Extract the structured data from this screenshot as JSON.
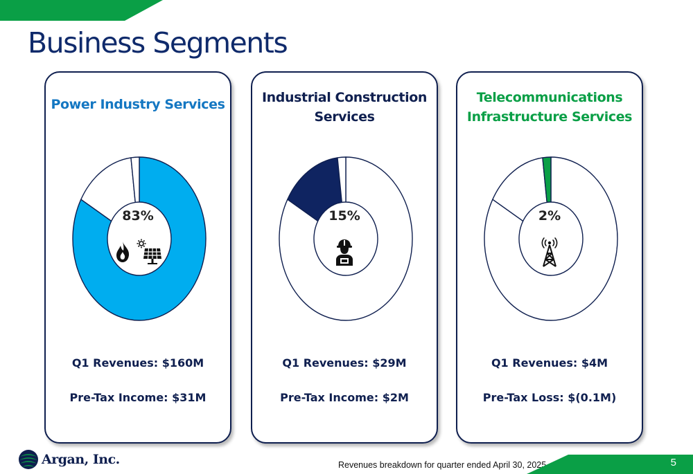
{
  "page": {
    "title": "Business Segments",
    "footnote": "Revenues breakdown for quarter ended April 30, 2025",
    "page_number": "5",
    "logo_text": "Argan, Inc.",
    "colors": {
      "title": "#0f2a6b",
      "accent_green": "#0a9f46",
      "navy": "#0f1f4f"
    }
  },
  "segments": [
    {
      "title_lines": [
        "Power Industry Services"
      ],
      "title_color": "#1477c2",
      "share_label": "83%",
      "revenue_label": "Q1 Revenues: $160M",
      "income_label": "Pre-Tax Income: $31M",
      "icons": [
        "flame-icon",
        "solar-panel-icon"
      ]
    },
    {
      "title_lines": [
        "Industrial Construction",
        "Services"
      ],
      "title_color": "#0f1f4f",
      "share_label": "15%",
      "revenue_label": "Q1 Revenues: $29M",
      "income_label": "Pre-Tax Income: $2M",
      "icons": [
        "construction-worker-icon"
      ]
    },
    {
      "title_lines": [
        "Telecommunications",
        "Infrastructure Services"
      ],
      "title_color": "#0a9f46",
      "share_label": "2%",
      "revenue_label": "Q1 Revenues: $4M",
      "income_label": "Pre-Tax Loss: $(0.1M)",
      "icons": [
        "cell-tower-icon"
      ]
    }
  ],
  "chart_data": [
    {
      "type": "pie",
      "title": "Power Industry Services",
      "categories": [
        "Power Industry Services",
        "Industrial Construction Services",
        "Telecommunications Infrastructure Services"
      ],
      "values": [
        83,
        15,
        2
      ],
      "highlight": 0,
      "highlight_color": "#00adef"
    },
    {
      "type": "pie",
      "title": "Industrial Construction Services",
      "categories": [
        "Power Industry Services",
        "Industrial Construction Services",
        "Telecommunications Infrastructure Services"
      ],
      "values": [
        83,
        15,
        2
      ],
      "highlight": 1,
      "highlight_color": "#0f2461"
    },
    {
      "type": "pie",
      "title": "Telecommunications Infrastructure Services",
      "categories": [
        "Power Industry Services",
        "Industrial Construction Services",
        "Telecommunications Infrastructure Services"
      ],
      "values": [
        83,
        15,
        2
      ],
      "highlight": 2,
      "highlight_color": "#0a9f46"
    }
  ]
}
